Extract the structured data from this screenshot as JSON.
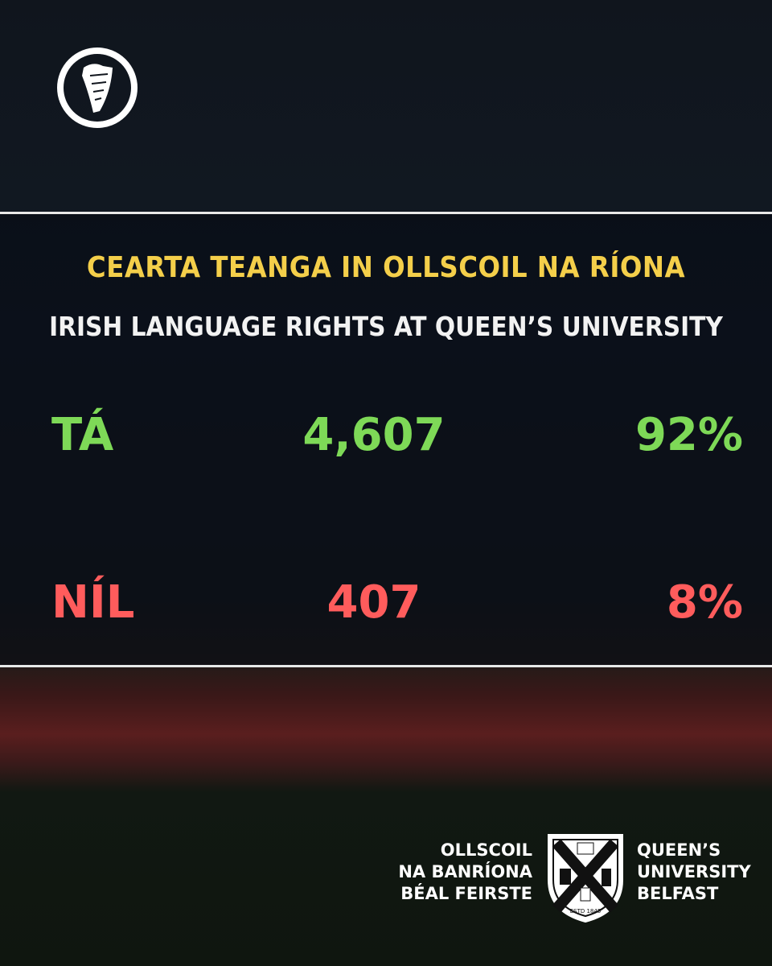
{
  "header": {
    "title": "CEARTA TEANGA IN OLLSCOIL NA RÍONA",
    "subtitle": "IRISH LANGUAGE RIGHTS AT QUEEN’S UNIVERSITY"
  },
  "results": [
    {
      "label": "TÁ",
      "count": "4,607",
      "percent": "92%"
    },
    {
      "label": "NÍL",
      "count": "407",
      "percent": "8%"
    }
  ],
  "footer": {
    "irish_name": [
      "OLLSCOIL",
      "NA BANRÍONA",
      "BÉAL FEIRSTE"
    ],
    "english_name": [
      "QUEEN’S",
      "UNIVERSITY",
      "BELFAST"
    ],
    "crest_text": "ESTD 1845"
  }
}
